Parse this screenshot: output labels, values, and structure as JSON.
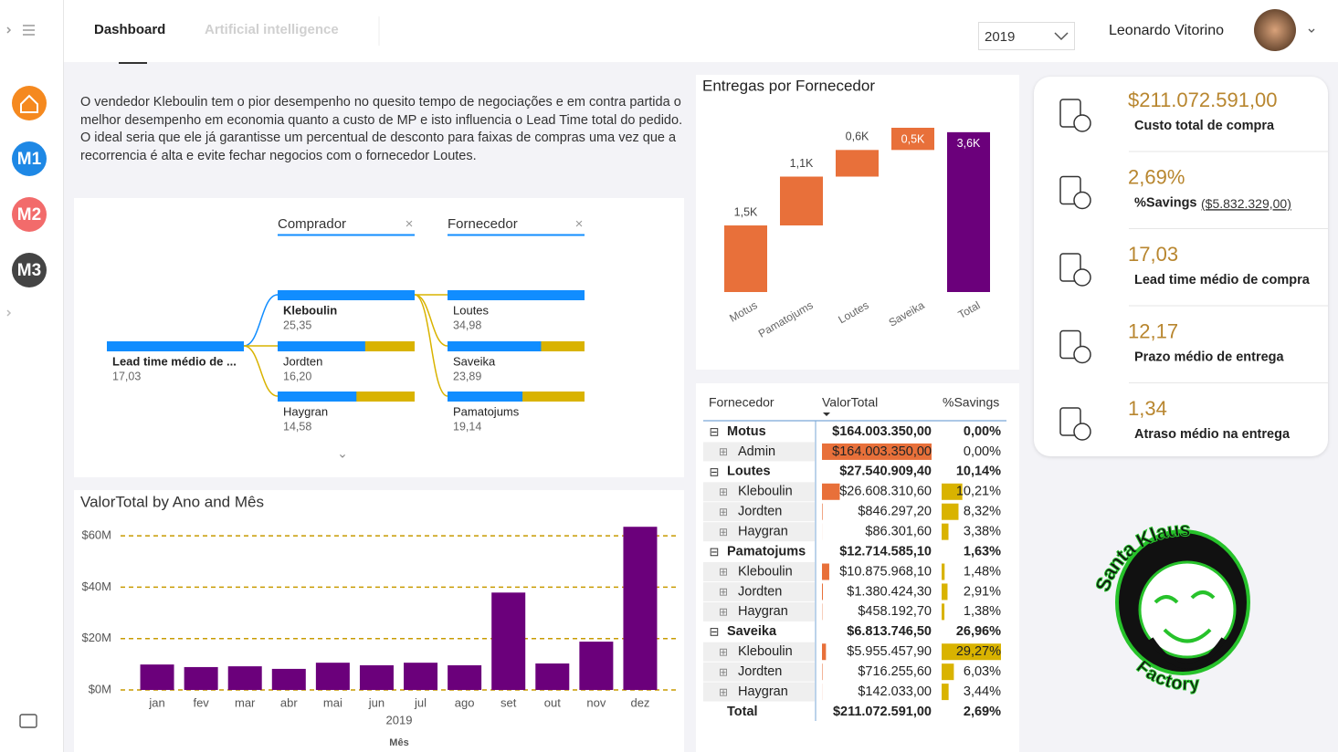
{
  "nav": {
    "tabs": [
      "Dashboard",
      "Artificial intelligence"
    ],
    "year": "2019",
    "user": "Leonardo Vitorino"
  },
  "sidebar": {
    "items": [
      "M1",
      "M2",
      "M3"
    ]
  },
  "insight": [
    "O vendedor Kleboulin tem o pior desempenho no quesito tempo de negociações e em contra partida o melhor desempenho em economia quanto a custo de MP e isto influencia o Lead Time total do pedido.",
    "O ideal seria que ele já garantisse um percentual de desconto para faixas de compras uma vez que a recorrencia é alta e evite fechar negocios com o fornecedor Loutes."
  ],
  "tree": {
    "headers": [
      "Comprador",
      "Fornecedor"
    ],
    "root": {
      "label": "Lead time médio de ...",
      "value": 17.03,
      "value_label": "17,03"
    },
    "levels": [
      {
        "labels": [
          "Kleboulin",
          "Jordten",
          "Haygran"
        ],
        "values": [
          25.35,
          16.2,
          14.58
        ],
        "value_labels": [
          "25,35",
          "16,20",
          "14,58"
        ]
      },
      {
        "labels": [
          "Loutes",
          "Saveika",
          "Pamatojums"
        ],
        "values": [
          34.98,
          23.89,
          19.14
        ],
        "value_labels": [
          "34,98",
          "23,89",
          "19,14"
        ]
      }
    ],
    "bar_color": "#118dff",
    "rest_color": "#d9b300"
  },
  "chart_data": [
    {
      "type": "waterfall",
      "title": "Entregas por Fornecedor",
      "categories": [
        "Motus",
        "Pamatojums",
        "Loutes",
        "Saveika",
        "Total"
      ],
      "values": [
        1500,
        1100,
        600,
        500,
        3600
      ],
      "value_labels": [
        "1,5K",
        "1,1K",
        "0,6K",
        "0,5K",
        "3,6K"
      ],
      "measures": [
        "relative",
        "relative",
        "relative",
        "relative",
        "total"
      ],
      "increase_color": "#e8703a",
      "total_color": "#6b007b"
    },
    {
      "type": "bar",
      "title": "ValorTotal by Ano and Mês",
      "categories": [
        "jan",
        "fev",
        "mar",
        "abr",
        "mai",
        "jun",
        "jul",
        "ago",
        "set",
        "out",
        "nov",
        "dez"
      ],
      "values": [
        9.9,
        8.9,
        9.2,
        8.2,
        10.6,
        9.6,
        10.6,
        9.6,
        37.9,
        10.3,
        18.8,
        63.5
      ],
      "color": "#6b007b",
      "ylim": [
        0,
        65
      ],
      "yticks": [
        {
          "value": 0,
          "label": "$0M"
        },
        {
          "value": 20,
          "label": "$20M"
        },
        {
          "value": 40,
          "label": "$40M"
        },
        {
          "value": 60,
          "label": "$60M"
        }
      ],
      "grid": true,
      "grid_color": "#c89b00",
      "x_group_label": "2019",
      "xlabel": "Mês"
    }
  ],
  "table": {
    "columns": [
      "Fornecedor",
      "ValorTotal",
      "%Savings"
    ],
    "groups": [
      {
        "name": "Motus",
        "valor": "$164.003.350,00",
        "savings": "0,00%",
        "rows": [
          {
            "name": "Admin",
            "valor": "$164.003.350,00",
            "savings": "0,00%"
          }
        ]
      },
      {
        "name": "Loutes",
        "valor": "$27.540.909,40",
        "savings": "10,14%",
        "rows": [
          {
            "name": "Kleboulin",
            "valor": "$26.608.310,60",
            "savings": "10,21%"
          },
          {
            "name": "Jordten",
            "valor": "$846.297,20",
            "savings": "8,32%"
          },
          {
            "name": "Haygran",
            "valor": "$86.301,60",
            "savings": "3,38%"
          }
        ]
      },
      {
        "name": "Pamatojums",
        "valor": "$12.714.585,10",
        "savings": "1,63%",
        "rows": [
          {
            "name": "Kleboulin",
            "valor": "$10.875.968,10",
            "savings": "1,48%"
          },
          {
            "name": "Jordten",
            "valor": "$1.380.424,30",
            "savings": "2,91%"
          },
          {
            "name": "Haygran",
            "valor": "$458.192,70",
            "savings": "1,38%"
          }
        ]
      },
      {
        "name": "Saveika",
        "valor": "$6.813.746,50",
        "savings": "26,96%",
        "rows": [
          {
            "name": "Kleboulin",
            "valor": "$5.955.457,90",
            "savings": "29,27%"
          },
          {
            "name": "Jordten",
            "valor": "$716.255,60",
            "savings": "6,03%"
          },
          {
            "name": "Haygran",
            "valor": "$142.033,00",
            "savings": "3,44%"
          }
        ]
      }
    ],
    "total": {
      "name": "Total",
      "valor": "$211.072.591,00",
      "savings": "2,69%"
    }
  },
  "kpis": [
    {
      "value": "$211.072.591,00",
      "label": "Custo total de compra"
    },
    {
      "value": "2,69%",
      "label": "%Savings",
      "extra": "($5.832.329,00)"
    },
    {
      "value": "17,03",
      "label": "Lead time médio de compra"
    },
    {
      "value": "12,17",
      "label": "Prazo médio de entrega"
    },
    {
      "value": "1,34",
      "label": "Atraso médio na entrega"
    }
  ],
  "logo": [
    "Santa Klaus",
    "Factory"
  ]
}
